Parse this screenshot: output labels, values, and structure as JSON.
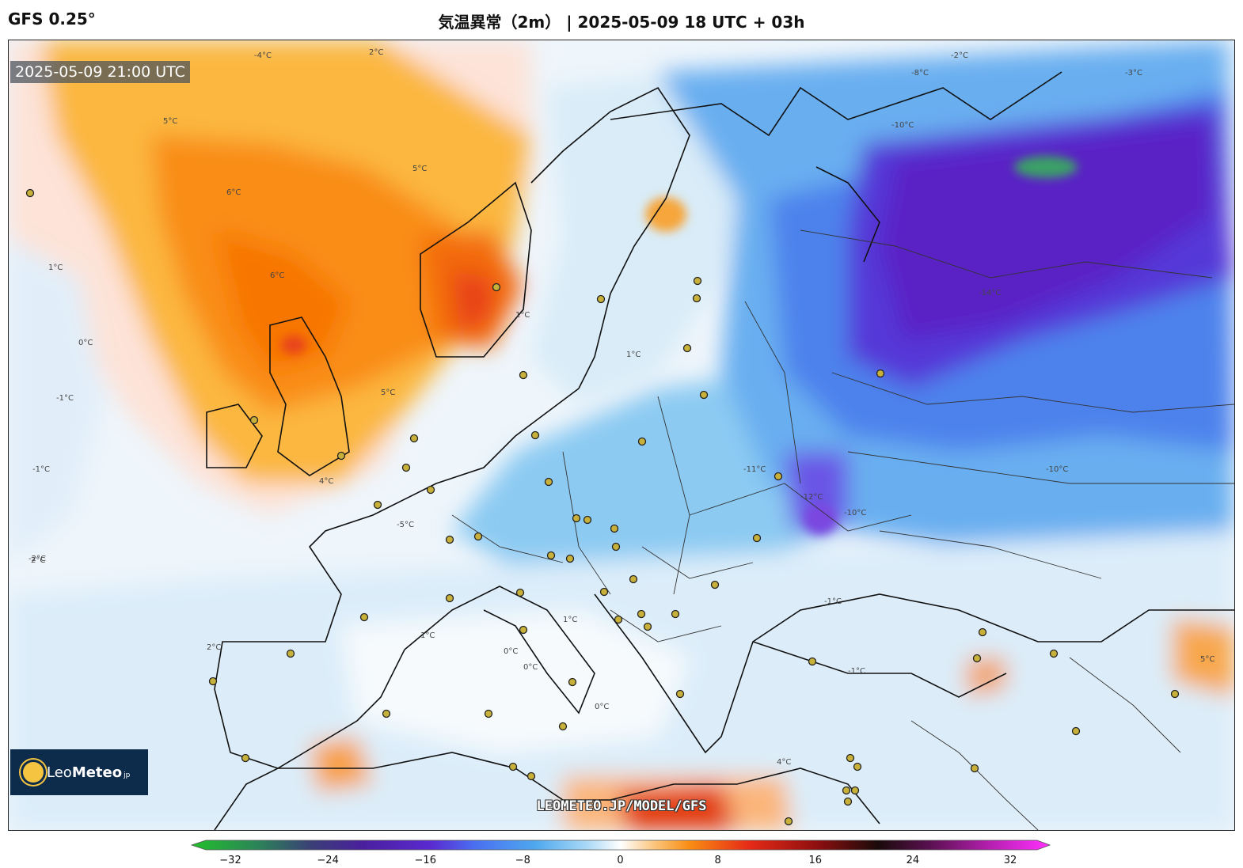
{
  "header": {
    "model": "GFS 0.25°",
    "title": "気温異常（2m） | 2025-05-09 18 UTC + 03h"
  },
  "map": {
    "valid_time": "2025-05-09 21:00 UTC",
    "credit": "LEOMETEO.JP/MODEL/GFS",
    "logo": {
      "name_light": "Leo",
      "name_bold": "Meteo",
      "suffix": "jp"
    },
    "contour_labels": [
      "-4°C",
      "-2°C",
      "-8°C",
      "-3°C",
      "2°C",
      "5°C",
      "6°C",
      "6°C",
      "5°C",
      "5°C",
      "4°C",
      "1°C",
      "1°C",
      "0°C",
      "-1°C",
      "-1°C",
      "1°C",
      "2°C",
      "-10°C",
      "-14°C",
      "-11°C",
      "-12°C",
      "-10°C",
      "-10°C",
      "-5°C",
      "-2°C",
      "-1°C",
      "1°C",
      "0°C",
      "0°C",
      "1°C",
      "2°C",
      "-1°C",
      "4°C",
      "5°C",
      "0°C"
    ]
  },
  "colorbar": {
    "ticks": [
      "−32",
      "−24",
      "−16",
      "−8",
      "0",
      "8",
      "16",
      "24",
      "32"
    ],
    "range": [
      -32,
      32
    ]
  }
}
